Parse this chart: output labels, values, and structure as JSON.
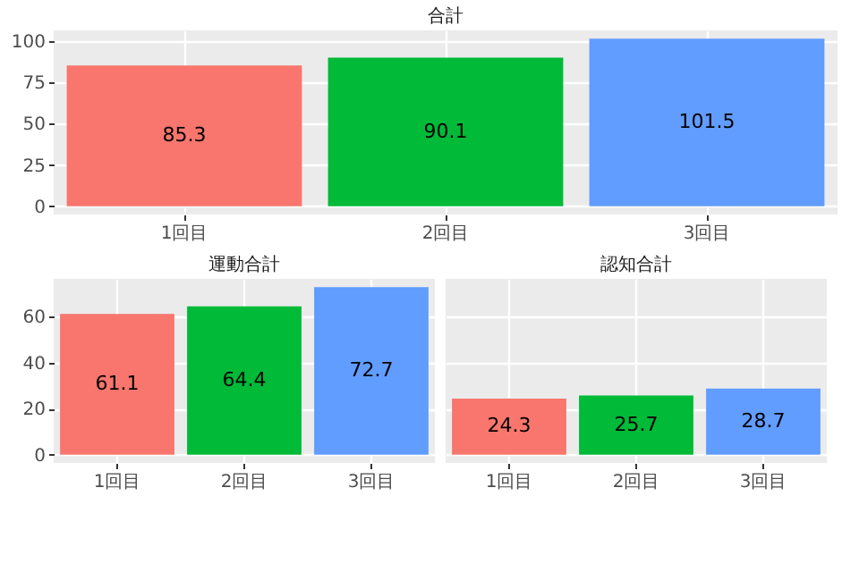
{
  "chart_data": [
    {
      "type": "bar",
      "title": "合計",
      "categories": [
        "1回目",
        "2回目",
        "3回目"
      ],
      "values": [
        85.3,
        90.1,
        101.5
      ],
      "colors": [
        "#f8766d",
        "#00ba38",
        "#619cff"
      ],
      "ylim": [
        -5.075,
        106.575
      ],
      "yticks": [
        0,
        25,
        50,
        75,
        100
      ],
      "grid": true,
      "data_labels": true
    },
    {
      "type": "bar",
      "title": "運動合計",
      "categories": [
        "1回目",
        "2回目",
        "3回目"
      ],
      "values": [
        61.1,
        64.4,
        72.7
      ],
      "colors": [
        "#f8766d",
        "#00ba38",
        "#619cff"
      ],
      "ylim": [
        -3.635,
        76.335
      ],
      "yticks": [
        0,
        20,
        40,
        60
      ],
      "grid": true,
      "data_labels": true
    },
    {
      "type": "bar",
      "title": "認知合計",
      "categories": [
        "1回目",
        "2回目",
        "3回目"
      ],
      "values": [
        24.3,
        25.7,
        28.7
      ],
      "colors": [
        "#f8766d",
        "#00ba38",
        "#619cff"
      ],
      "ylim": [
        -3.635,
        76.335
      ],
      "yticks": [
        0,
        20,
        40,
        60
      ],
      "grid": true,
      "data_labels": true,
      "tick_labels": "x"
    }
  ]
}
